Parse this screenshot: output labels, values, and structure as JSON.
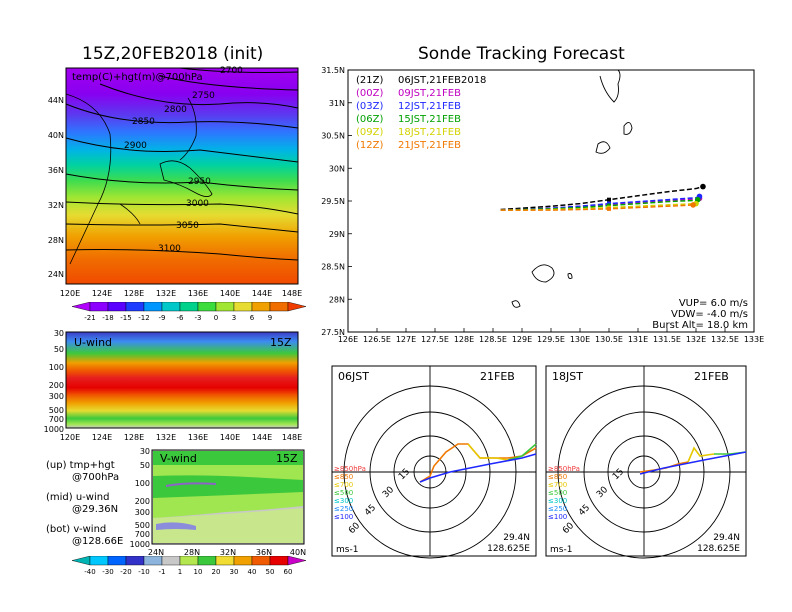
{
  "map_panel": {
    "title": "15Z,20FEB2018 (init)",
    "subtitle": "temp(C)+hgt(m)@700hPa",
    "lat_labels": [
      "44N",
      "40N",
      "36N",
      "32N",
      "28N",
      "24N"
    ],
    "lon_labels": [
      "120E",
      "124E",
      "128E",
      "132E",
      "136E",
      "140E",
      "144E",
      "148E"
    ],
    "contour_labels": [
      "2700",
      "2750",
      "2800",
      "2850",
      "2900",
      "2950",
      "3000",
      "3050",
      "3100"
    ]
  },
  "temp_colorbar": {
    "labels": [
      "-21",
      "-18",
      "-15",
      "-12",
      "-9",
      "-6",
      "-3",
      "0",
      "3",
      "6",
      "9"
    ],
    "colors": [
      "#b200ff",
      "#8c00ff",
      "#5a00ff",
      "#1e3cff",
      "#0096ff",
      "#00c8c8",
      "#00d28c",
      "#3cdc3c",
      "#a0e632",
      "#e6dc32",
      "#f0a000",
      "#f06e00",
      "#f03c00"
    ]
  },
  "u_panel": {
    "title": "U-wind",
    "time": "15Z",
    "p_labels": [
      "30",
      "50",
      "100",
      "200",
      "300",
      "500",
      "700",
      "1000"
    ],
    "lon_labels": [
      "120E",
      "124E",
      "128E",
      "132E",
      "136E",
      "140E",
      "144E",
      "148E"
    ]
  },
  "v_panel": {
    "title": "V-wind",
    "time": "15Z",
    "p_labels": [
      "30",
      "50",
      "100",
      "200",
      "300",
      "500",
      "700",
      "1000"
    ],
    "lat_labels": [
      "24N",
      "28N",
      "32N",
      "36N",
      "40N"
    ]
  },
  "legend_text": {
    "up_line1": "(up) tmp+hgt",
    "up_line2": "@700hPa",
    "mid_line1": "(mid) u-wind",
    "mid_line2": "@29.36N",
    "bot_line1": "(bot) v-wind",
    "bot_line2": "@128.66E"
  },
  "wind_colorbar": {
    "labels": [
      "-40",
      "-30",
      "-20",
      "-10",
      "-1",
      "1",
      "10",
      "20",
      "30",
      "40",
      "50",
      "60"
    ],
    "colors": [
      "#00b4b4",
      "#00c8ff",
      "#0064ff",
      "#3232c8",
      "#8cb4dc",
      "#c8c8c8",
      "#b4e650",
      "#3cc83c",
      "#f0dc32",
      "#f0a000",
      "#f05a00",
      "#e60000",
      "#c800c8"
    ]
  },
  "chart_data": {
    "type": "line",
    "title": "Sonde Tracking Forecast",
    "x_ticks": [
      "126E",
      "126.5E",
      "127E",
      "127.5E",
      "128E",
      "128.5E",
      "129E",
      "129.5E",
      "130E",
      "130.5E",
      "131E",
      "131.5E",
      "132E",
      "132.5E",
      "133E"
    ],
    "y_ticks": [
      "27.5N",
      "28N",
      "28.5N",
      "29N",
      "29.5N",
      "30N",
      "30.5N",
      "31N",
      "31.5N"
    ],
    "xlim": [
      126,
      133
    ],
    "ylim": [
      27.5,
      31.5
    ],
    "legend": [
      {
        "code": "(21Z)",
        "label": "06JST,21FEB2018",
        "color": "#000000"
      },
      {
        "code": "(00Z)",
        "label": "09JST,21FEB",
        "color": "#c000c0"
      },
      {
        "code": "(03Z)",
        "label": "12JST,21FEB",
        "color": "#1e28ff"
      },
      {
        "code": "(06Z)",
        "label": "15JST,21FEB",
        "color": "#00a000"
      },
      {
        "code": "(09Z)",
        "label": "18JST,21FEB",
        "color": "#d2d200"
      },
      {
        "code": "(12Z)",
        "label": "21JST,21FEB",
        "color": "#f07800"
      }
    ],
    "series": [
      {
        "color": "#000000",
        "x": [
          128.63,
          129.0,
          129.5,
          130.0,
          130.5,
          131.0,
          131.5,
          132.0,
          132.12
        ],
        "y": [
          29.37,
          29.39,
          29.42,
          29.46,
          29.52,
          29.58,
          29.64,
          29.69,
          29.72
        ]
      },
      {
        "color": "#c000c0",
        "x": [
          128.63,
          129.0,
          129.5,
          130.0,
          130.5,
          131.0,
          131.5,
          132.0,
          132.06
        ],
        "y": [
          29.36,
          29.37,
          29.39,
          29.42,
          29.45,
          29.48,
          29.51,
          29.53,
          29.54
        ]
      },
      {
        "color": "#1e28ff",
        "x": [
          128.63,
          129.0,
          129.5,
          130.0,
          130.5,
          131.0,
          131.5,
          132.0,
          132.06
        ],
        "y": [
          29.36,
          29.37,
          29.39,
          29.42,
          29.46,
          29.49,
          29.52,
          29.55,
          29.57
        ]
      },
      {
        "color": "#00a000",
        "x": [
          128.63,
          129.0,
          129.5,
          130.0,
          130.5,
          131.0,
          131.5,
          132.0,
          132.03
        ],
        "y": [
          29.36,
          29.37,
          29.38,
          29.4,
          29.43,
          29.46,
          29.49,
          29.51,
          29.52
        ]
      },
      {
        "color": "#d2d200",
        "x": [
          128.63,
          129.0,
          129.5,
          130.0,
          130.5,
          131.0,
          131.5,
          132.0
        ],
        "y": [
          29.36,
          29.36,
          29.37,
          29.38,
          29.4,
          29.42,
          29.44,
          29.46
        ]
      },
      {
        "color": "#f07800",
        "x": [
          128.63,
          129.0,
          129.5,
          130.0,
          130.5,
          131.0,
          131.5,
          131.95
        ],
        "y": [
          29.36,
          29.36,
          29.36,
          29.37,
          29.38,
          29.4,
          29.42,
          29.44
        ]
      }
    ],
    "params": {
      "vup": "VUP=  6.0  m/s",
      "vdw": "VDW= -4.0  m/s",
      "burst": "Burst Alt= 18.0  km"
    }
  },
  "hodo_06": {
    "time": "06JST",
    "date": "21FEB",
    "lat": "29.4N",
    "lon": "128.625E",
    "unit": "ms-1",
    "ring_labels": [
      "15",
      "30",
      "45",
      "60"
    ],
    "legend": [
      {
        "label": "≥850hPa",
        "color": "#f03c3c"
      },
      {
        "label": "≤850",
        "color": "#f07800"
      },
      {
        "label": "≤700",
        "color": "#e6c800"
      },
      {
        "label": "≤500",
        "color": "#3cc83c"
      },
      {
        "label": "≤300",
        "color": "#00c8c8"
      },
      {
        "label": "≤250",
        "color": "#1e8cff"
      },
      {
        "label": "≤100",
        "color": "#1e28ff"
      }
    ]
  },
  "hodo_18": {
    "time": "18JST",
    "date": "21FEB",
    "lat": "29.4N",
    "lon": "128.625E",
    "unit": "ms-1",
    "ring_labels": [
      "15",
      "30",
      "45",
      "60"
    ],
    "legend": [
      {
        "label": "≥850hPa",
        "color": "#f03c3c"
      },
      {
        "label": "≤850",
        "color": "#f07800"
      },
      {
        "label": "≤700",
        "color": "#e6c800"
      },
      {
        "label": "≤500",
        "color": "#3cc83c"
      },
      {
        "label": "≤300",
        "color": "#00c8c8"
      },
      {
        "label": "≤250",
        "color": "#1e8cff"
      },
      {
        "label": "≤100",
        "color": "#1e28ff"
      }
    ]
  }
}
